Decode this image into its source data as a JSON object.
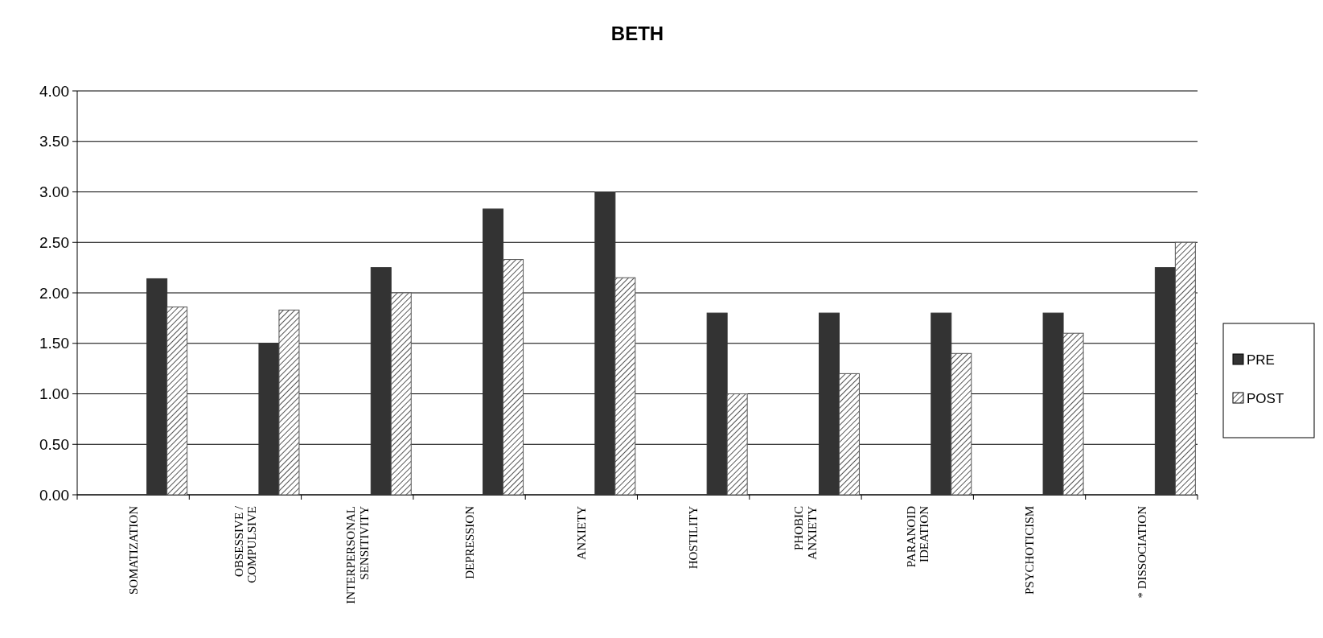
{
  "chart_data": {
    "type": "bar",
    "title": "BETH",
    "categories": [
      "SOMATIZATION",
      "OBSESSIVE /\nCOMPULSIVE",
      "INTERPERSONAL\nSENSITIVITY",
      "DEPRESSION",
      "ANXIETY",
      "HOSTILITY",
      "PHOBIC\nANXIETY",
      "PARANOID\nIDEATION",
      "PSYCHOTICISM",
      "* DISSOCIATION"
    ],
    "series": [
      {
        "name": "PRE",
        "color": "#333333",
        "values": [
          2.14,
          1.5,
          2.25,
          2.83,
          3.0,
          1.8,
          1.8,
          1.8,
          1.8,
          2.25
        ]
      },
      {
        "name": "POST",
        "color": "#555555",
        "values": [
          1.86,
          1.83,
          2.0,
          2.33,
          2.15,
          1.0,
          1.2,
          1.4,
          1.6,
          2.5
        ]
      }
    ],
    "ylim": [
      0,
      4
    ],
    "yticks": [
      {
        "value": 0,
        "label": "0.00"
      },
      {
        "value": 0.5,
        "label": "0.50"
      },
      {
        "value": 1,
        "label": "1.00"
      },
      {
        "value": 1.5,
        "label": "1.50"
      },
      {
        "value": 2,
        "label": "2.00"
      },
      {
        "value": 2.5,
        "label": "2.50"
      },
      {
        "value": 3,
        "label": "3.00"
      },
      {
        "value": 3.5,
        "label": "3.50"
      },
      {
        "value": 4,
        "label": "4.00"
      }
    ],
    "grid": "y",
    "legend": "right"
  }
}
